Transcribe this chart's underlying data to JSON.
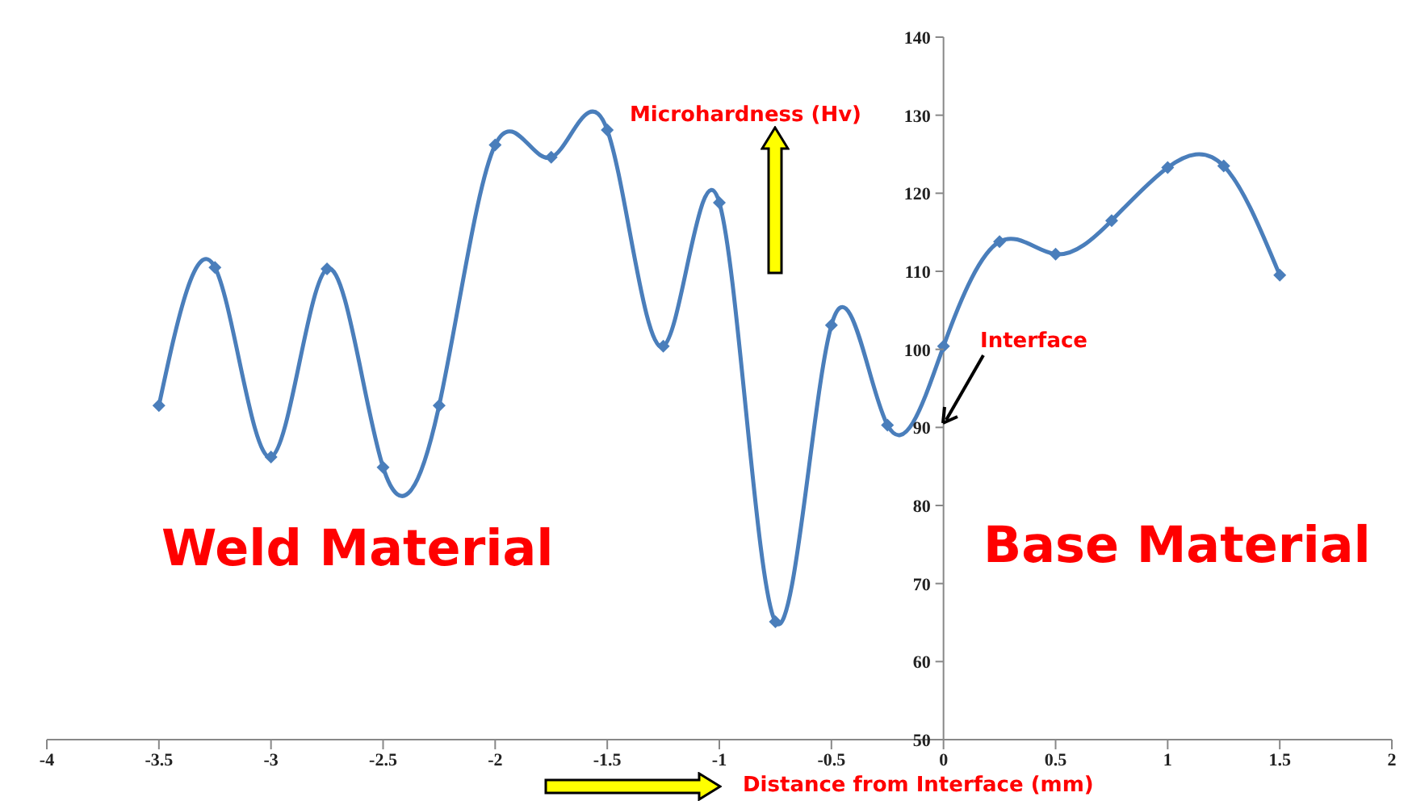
{
  "chart_data": {
    "type": "line",
    "xlabel": "Distance from Interface (mm)",
    "ylabel": "Microhardness (Hv)",
    "x": [
      -3.5,
      -3.25,
      -3,
      -2.75,
      -2.5,
      -2.25,
      -2,
      -1.75,
      -1.5,
      -1.25,
      -1,
      -0.75,
      -0.5,
      -0.25,
      0,
      0.25,
      0.5,
      0.75,
      1,
      1.25,
      1.5
    ],
    "series": [
      {
        "color": "#4a7ebb",
        "values": [
          92.8,
          110.5,
          86.2,
          110.3,
          84.9,
          92.8,
          126.2,
          124.6,
          128.1,
          100.4,
          118.8,
          65.1,
          103.1,
          90.3,
          100.4,
          113.8,
          112.2,
          116.5,
          123.3,
          123.5,
          109.5
        ]
      }
    ],
    "xlim": [
      -4,
      2
    ],
    "xticks": [
      -4,
      -3.5,
      -3,
      -2.5,
      -2,
      -1.5,
      -1,
      -0.5,
      0,
      0.5,
      1,
      1.5,
      2
    ],
    "ylim": [
      50,
      140
    ],
    "yticks": [
      50,
      60,
      70,
      80,
      90,
      100,
      110,
      120,
      130,
      140
    ],
    "marker": "diamond",
    "line_style": "solid",
    "annotations": [
      "Weld Material",
      "Base Material",
      "Interface"
    ]
  }
}
